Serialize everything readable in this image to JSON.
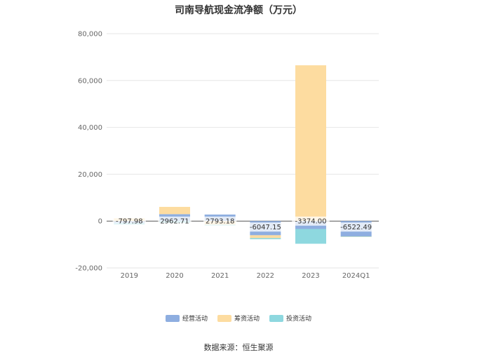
{
  "chart_data": {
    "type": "bar",
    "stacked": true,
    "title": "司南导航现金流净额（万元）",
    "categories": [
      "2019",
      "2020",
      "2021",
      "2022",
      "2023",
      "2024Q1"
    ],
    "series": [
      {
        "name": "经营活动",
        "color": "#8eaee0",
        "values": [
          -797.98,
          2962.71,
          2793.18,
          -6047.15,
          -3374.0,
          -6522.49
        ]
      },
      {
        "name": "筹资活动",
        "color": "#fddca0",
        "values": [
          1200,
          3100,
          -1500,
          -1200,
          66500,
          -100
        ]
      },
      {
        "name": "投资活动",
        "color": "#8ed8df",
        "values": [
          -700,
          -700,
          -400,
          -500,
          -6300,
          -100
        ]
      }
    ],
    "data_labels": [
      "-797.98",
      "2962.71",
      "2793.18",
      "-6047.15",
      "-3374.00",
      "-6522.49"
    ],
    "ylim": [
      -20000,
      80000
    ],
    "yticks": [
      -20000,
      0,
      20000,
      40000,
      60000,
      80000
    ],
    "ytick_labels": [
      "-20,000",
      "0",
      "20,000",
      "40,000",
      "60,000",
      "80,000"
    ],
    "grid": true,
    "legend_position": "bottom",
    "xlabel": "",
    "ylabel": ""
  },
  "source_text": "数据来源：恒生聚源"
}
